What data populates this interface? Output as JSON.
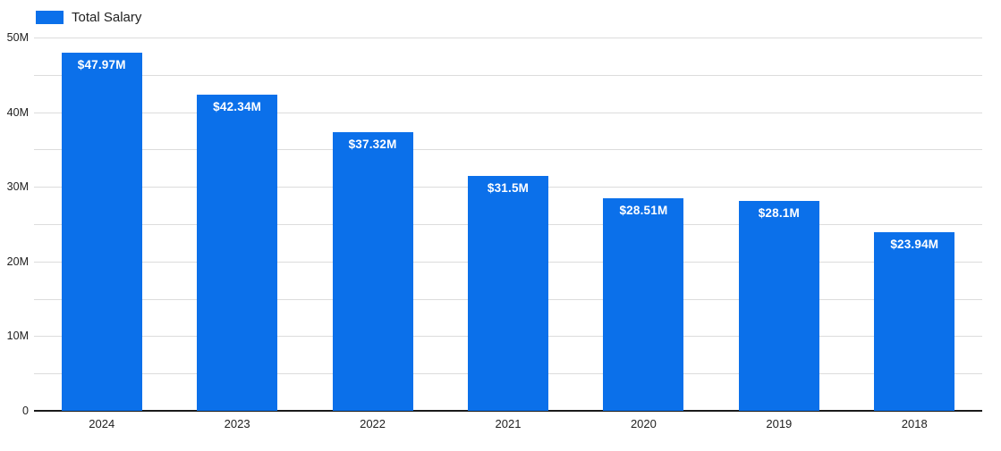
{
  "legend": {
    "label": "Total Salary"
  },
  "colors": {
    "bar": "#0b70ea",
    "gridline": "#dcdcdc",
    "axis_baseline": "#1a1a1a",
    "bar_value_text": "#ffffff",
    "tick_text": "#212121",
    "background": "#ffffff"
  },
  "chart_data": {
    "type": "bar",
    "title": "",
    "xlabel": "",
    "ylabel": "",
    "series_name": "Total Salary",
    "categories": [
      "2024",
      "2023",
      "2022",
      "2021",
      "2020",
      "2019",
      "2018"
    ],
    "values": [
      47.97,
      42.34,
      37.32,
      31.5,
      28.51,
      28.1,
      23.94
    ],
    "bar_labels": [
      "$47.97M",
      "$42.34M",
      "$37.32M",
      "$31.5M",
      "$28.51M",
      "$28.1M",
      "$23.94M"
    ],
    "unit": "millions of dollars",
    "ylim": [
      0,
      50
    ],
    "y_ticks": [
      {
        "value": 0,
        "label": "0"
      },
      {
        "value": 10,
        "label": "10M"
      },
      {
        "value": 20,
        "label": "20M"
      },
      {
        "value": 30,
        "label": "30M"
      },
      {
        "value": 40,
        "label": "40M"
      },
      {
        "value": 50,
        "label": "50M"
      }
    ],
    "gridline_interval": 5,
    "grid": true,
    "legend_position": "top-left"
  }
}
